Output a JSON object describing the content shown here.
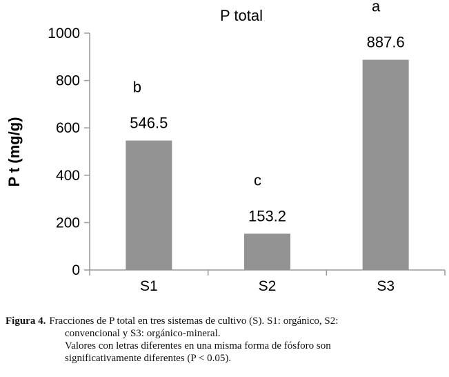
{
  "chart_data": {
    "type": "bar",
    "title": "P total",
    "xlabel": "",
    "ylabel": "P t (mg/g)",
    "categories": [
      "S1",
      "S2",
      "S3"
    ],
    "values": [
      546.5,
      153.2,
      887.6
    ],
    "data_labels": [
      "546.5",
      "153.2",
      "887.6"
    ],
    "significance_letters": [
      "b",
      "c",
      "a"
    ],
    "ylim": [
      0,
      1000
    ],
    "yticks": [
      0,
      200,
      400,
      600,
      800,
      1000
    ],
    "ytick_labels": [
      "0",
      "200",
      "400",
      "600",
      "800",
      "1000"
    ],
    "bar_color": "#939393",
    "grid": false,
    "legend": "none"
  },
  "caption": {
    "label": "Figura 4.",
    "line1": "Fracciones de P total en tres sistemas de cultivo (S). S1: orgánico, S2:",
    "line2": "convencional y S3: orgánico-mineral.",
    "line3": "Valores con letras diferentes en una misma forma de fósforo son",
    "line4": "significativamente diferentes (P < 0.05)."
  }
}
